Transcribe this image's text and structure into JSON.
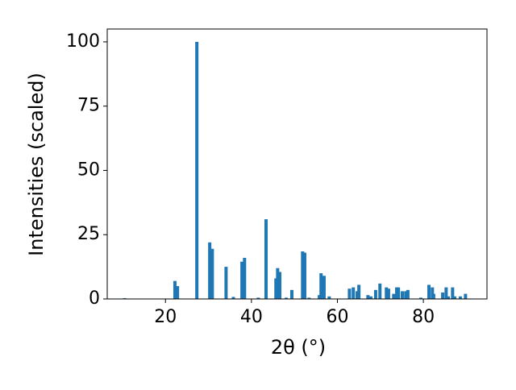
{
  "chart_data": {
    "type": "bar",
    "xlabel": "2θ (°)",
    "ylabel": "Intensities (scaled)",
    "color": "#1f77b4",
    "x": [
      10.5,
      22.2,
      22.8,
      27.3,
      30.3,
      30.9,
      34.1,
      35.8,
      37.8,
      38.4,
      41.6,
      43.4,
      45.7,
      46.1,
      46.6,
      48.1,
      49.4,
      51.9,
      52.4,
      53.4,
      55.8,
      56.2,
      56.9,
      58.1,
      62.8,
      63.7,
      64.6,
      65.0,
      67.1,
      67.8,
      68.9,
      69.9,
      71.4,
      71.9,
      73.1,
      73.8,
      74.2,
      75.1,
      75.9,
      76.4,
      79.4,
      81.3,
      82.1,
      82.4,
      84.5,
      85.3,
      85.8,
      86.8,
      87.3,
      88.6,
      89.8
    ],
    "values": [
      0.3,
      7,
      5,
      100,
      22,
      19.5,
      12.5,
      0.8,
      14.5,
      16,
      0.5,
      31,
      8,
      12,
      10.5,
      0.5,
      3.5,
      18.5,
      18,
      0.5,
      1.5,
      10,
      9,
      1,
      4,
      4.5,
      3,
      5.5,
      1.5,
      1,
      3.5,
      6,
      4.5,
      4,
      2,
      4.5,
      4.5,
      3,
      3,
      3.5,
      0.5,
      5.5,
      4.5,
      2,
      2.5,
      4.5,
      1,
      4.5,
      1,
      1,
      2
    ],
    "xlim": [
      6.45,
      94.8
    ],
    "ylim": [
      0,
      105
    ],
    "xticks": [
      20,
      40,
      60,
      80
    ],
    "yticks": [
      0,
      25,
      50,
      75,
      100
    ]
  }
}
